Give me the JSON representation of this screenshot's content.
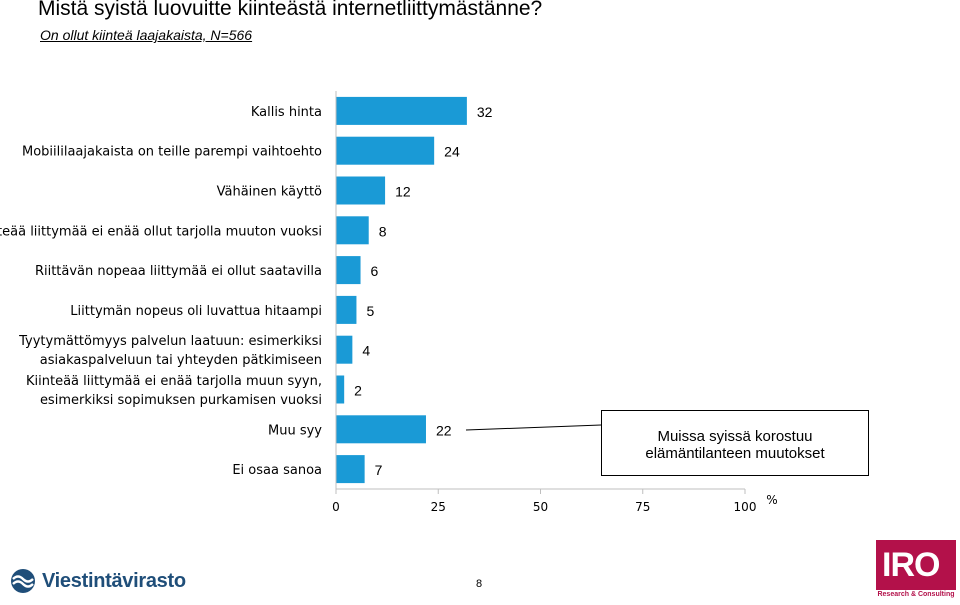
{
  "title": "Mistä syistä luovuitte kiinteästä internetliittymästänne?",
  "subtitle": "On ollut kiinteä laajakaista, N=566",
  "chart_data": {
    "type": "bar",
    "orientation": "horizontal",
    "categories": [
      [
        "Kallis hinta"
      ],
      [
        "Mobiililaajakaista on teille parempi vaihtoehto"
      ],
      [
        "Vähäinen käyttö"
      ],
      [
        "Kiinteää liittymää ei enää ollut tarjolla muuton vuoksi"
      ],
      [
        "Riittävän nopeaa liittymää ei ollut saatavilla"
      ],
      [
        "Liittymän nopeus oli luvattua hitaampi"
      ],
      [
        "Tyytymättömyys palvelun laatuun: esimerkiksi",
        "asiakaspalveluun tai yhteyden pätkimiseen"
      ],
      [
        "Kiinteää liittymää ei enää tarjolla muun syyn,",
        "esimerkiksi sopimuksen purkamisen vuoksi"
      ],
      [
        "Muu syy"
      ],
      [
        "Ei osaa sanoa"
      ]
    ],
    "values": [
      32,
      24,
      12,
      8,
      6,
      5,
      4,
      2,
      22,
      7
    ],
    "xlim": [
      0,
      100
    ],
    "xticks": [
      "0",
      "25",
      "50",
      "75",
      "100"
    ],
    "unit": "%",
    "color": "#1a9ad6",
    "grid": false
  },
  "callout": {
    "line1": "Muissa syissä korostuu",
    "line2": "elämäntilanteen muutokset"
  },
  "footer": {
    "left_logo": "Viestintävirasto",
    "page_number": "8",
    "right_logo": "IRO",
    "right_tagline": "Research & Consulting"
  },
  "colors": {
    "bar": "#1a9ad6",
    "brand_left": "#1f4e79",
    "brand_right": "#b3114a"
  }
}
